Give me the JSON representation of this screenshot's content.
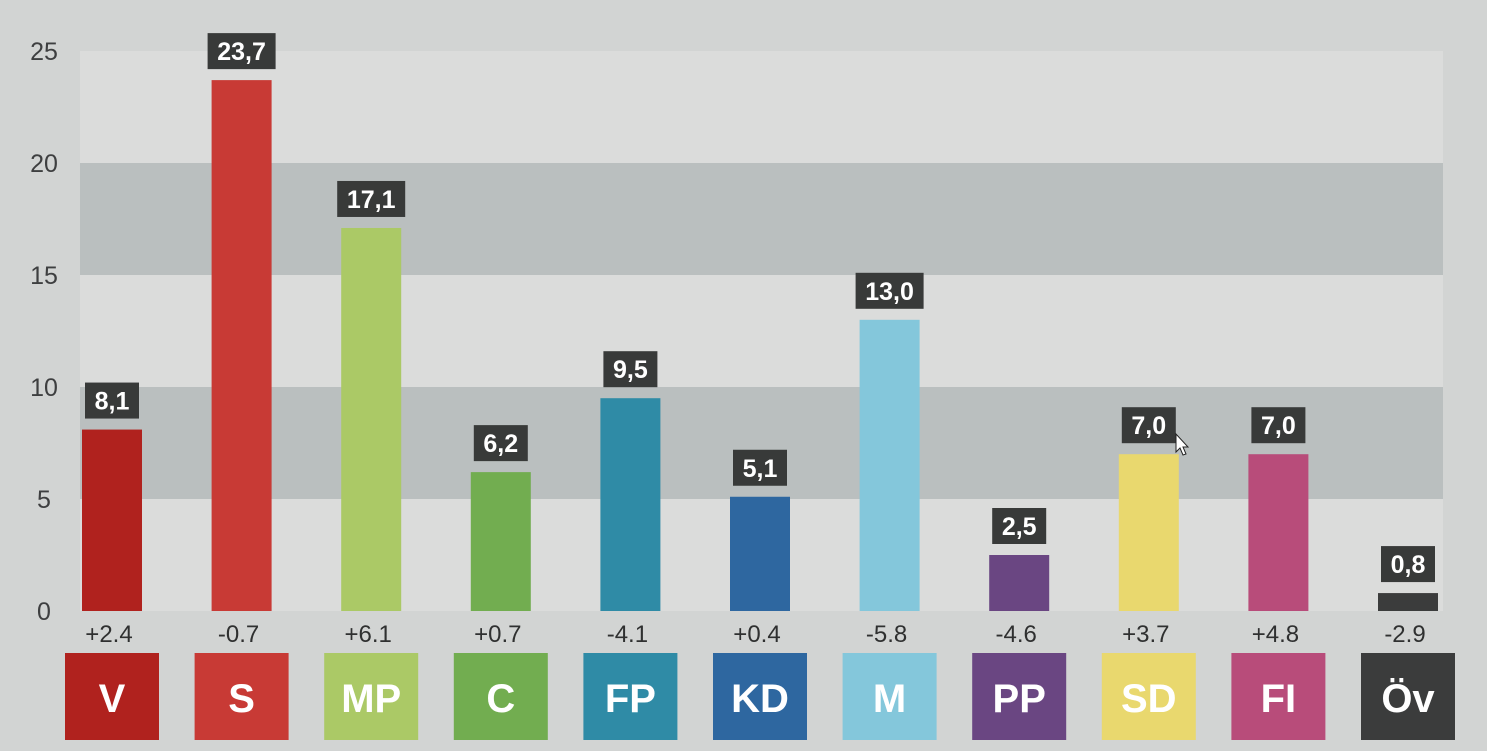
{
  "chart_data": {
    "type": "bar",
    "categories": [
      "V",
      "S",
      "MP",
      "C",
      "FP",
      "KD",
      "M",
      "PP",
      "SD",
      "FI",
      "Öv"
    ],
    "values": [
      8.1,
      23.7,
      17.1,
      6.2,
      9.5,
      5.1,
      13.0,
      2.5,
      7.0,
      7.0,
      0.8
    ],
    "value_labels": [
      "8,1",
      "23,7",
      "17,1",
      "6,2",
      "9,5",
      "5,1",
      "13,0",
      "2,5",
      "7,0",
      "7,0",
      "0,8"
    ],
    "changes": [
      "+2.4",
      "-0.7",
      "+6.1",
      "+0.7",
      "-4.1",
      "+0.4",
      "-5.8",
      "-4.6",
      "+3.7",
      "+4.8",
      "-2.9"
    ],
    "colors": [
      "#b0221e",
      "#c83a35",
      "#abc966",
      "#72ad50",
      "#2f8ba6",
      "#2e67a0",
      "#84c7db",
      "#6a4682",
      "#e9d86e",
      "#b84c7a",
      "#3b3c3c"
    ],
    "ylim": [
      0,
      25
    ],
    "yticks": [
      "0",
      "5",
      "10",
      "15",
      "20",
      "25"
    ],
    "title": "",
    "xlabel": "",
    "ylabel": "",
    "grid": "alternating horizontal bands"
  }
}
